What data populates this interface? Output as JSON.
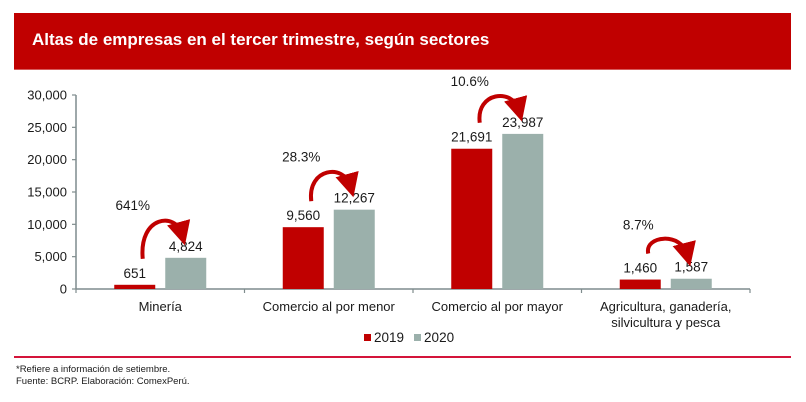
{
  "header": {
    "title": "Altas de empresas en el tercer trimestre, según sectores"
  },
  "colors": {
    "banner": "#c00000",
    "series_2019": "#c00000",
    "series_2020": "#9bb0ab",
    "axis": "#7f8c8d",
    "separator": "#d4143a"
  },
  "chart_data": {
    "type": "bar",
    "title": "Altas de empresas en el tercer trimestre, según sectores",
    "xlabel": "",
    "ylabel": "",
    "ylim": [
      0,
      30000
    ],
    "yticks": [
      0,
      5000,
      10000,
      15000,
      20000,
      25000,
      30000
    ],
    "ytick_labels": [
      "0",
      "5,000",
      "10,000",
      "15,000",
      "20,000",
      "25,000",
      "30,000"
    ],
    "categories": [
      "Minería",
      "Comercio al por menor",
      "Comercio al por mayor",
      "Agricultura, ganadería, silvicultura y pesca"
    ],
    "category_lines": [
      [
        "Minería"
      ],
      [
        "Comercio al por menor"
      ],
      [
        "Comercio al por mayor"
      ],
      [
        "Agricultura, ganadería,",
        "silvicultura y pesca"
      ]
    ],
    "series": [
      {
        "name": "2019",
        "values": [
          651,
          9560,
          21691,
          1460
        ],
        "labels": [
          "651",
          "9,560",
          "21,691",
          "1,460"
        ]
      },
      {
        "name": "2020",
        "values": [
          4824,
          12267,
          23987,
          1587
        ],
        "labels": [
          "4,824",
          "12,267",
          "23,987",
          "1,587"
        ]
      }
    ],
    "growth_annotations": [
      "641%",
      "28.3%",
      "10.6%",
      "8.7%"
    ],
    "grid": false,
    "legend": "bottom-center"
  },
  "legend": {
    "items": [
      {
        "label": "2019"
      },
      {
        "label": "2020"
      }
    ]
  },
  "footnotes": {
    "note": "*Refiere a información de setiembre.",
    "source": "Fuente: BCRP. Elaboración: ComexPerú."
  }
}
